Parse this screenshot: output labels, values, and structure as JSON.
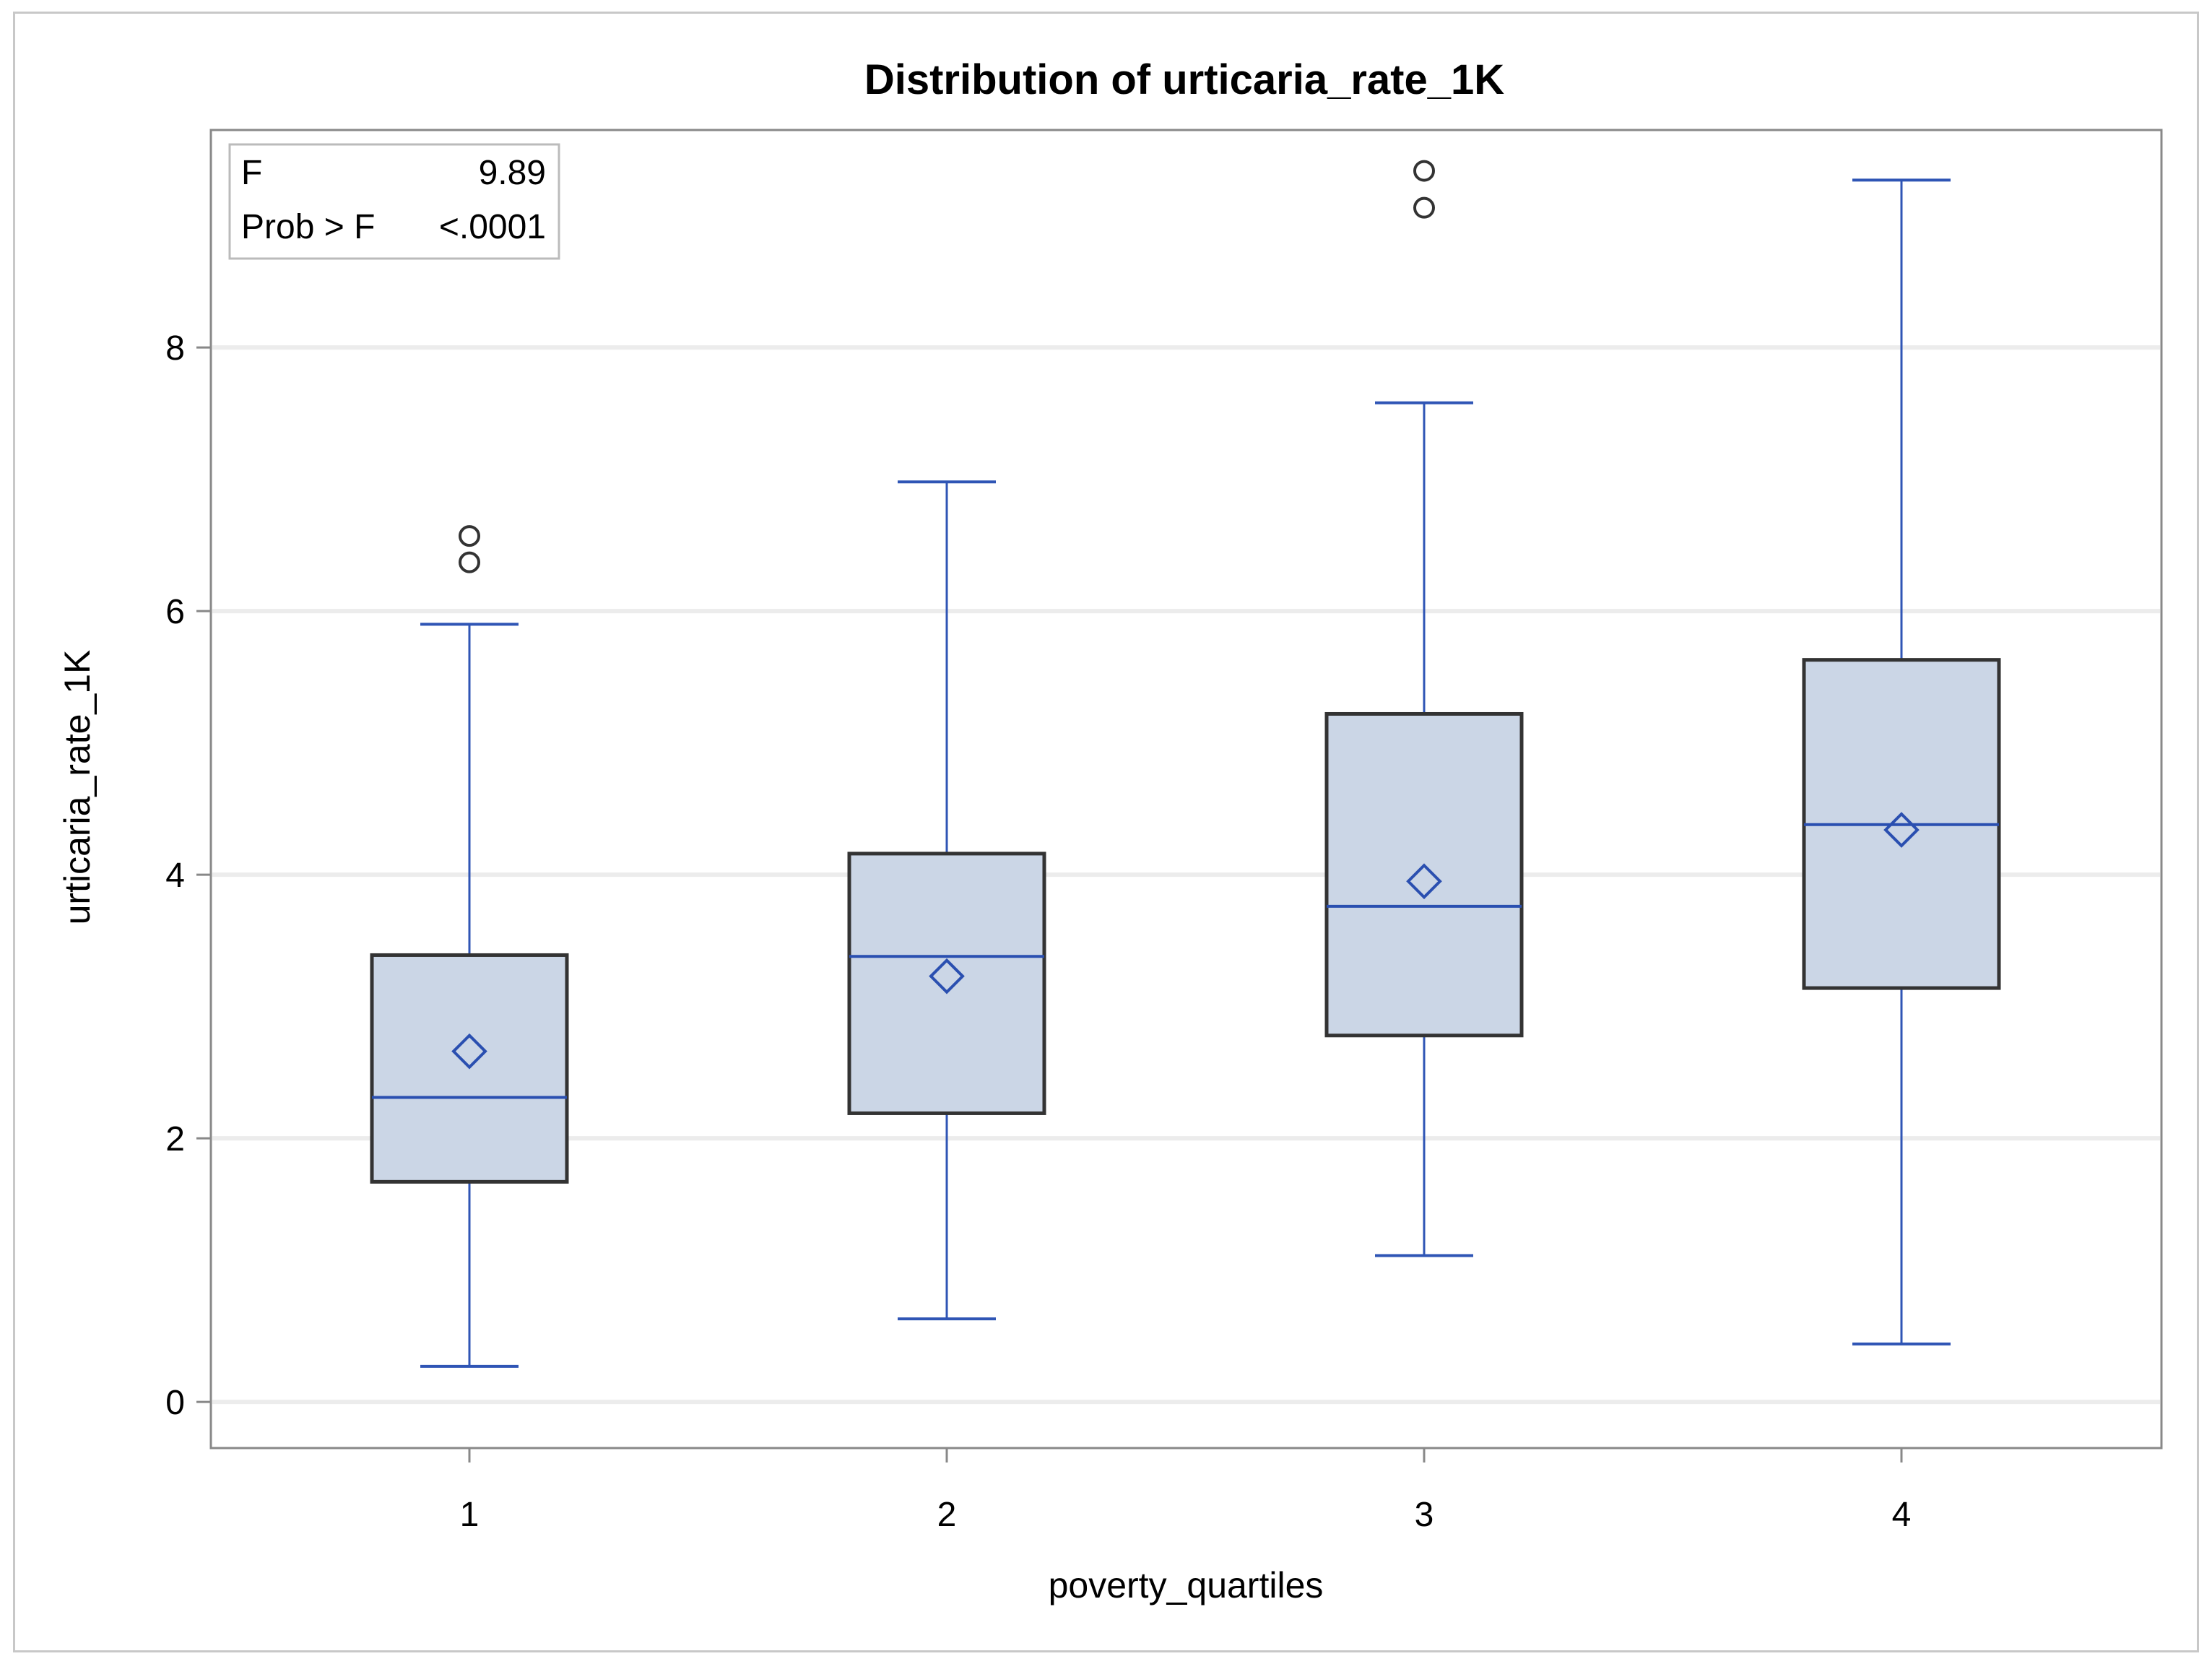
{
  "chart_data": {
    "type": "boxplot",
    "title": "Distribution of urticaria_rate_1K",
    "xlabel": "poverty_quartiles",
    "ylabel": "urticaria_rate_1K",
    "ylim": [
      -0.35,
      9.65
    ],
    "yticks": [
      0,
      2,
      4,
      6,
      8
    ],
    "grid": true,
    "categories": [
      "1",
      "2",
      "3",
      "4"
    ],
    "boxes": [
      {
        "category": "1",
        "min": 0.27,
        "q1": 1.67,
        "median": 2.31,
        "q3": 3.39,
        "max": 5.9,
        "mean": 2.66,
        "outliers": [
          6.37,
          6.57
        ]
      },
      {
        "category": "2",
        "min": 0.63,
        "q1": 2.19,
        "median": 3.38,
        "q3": 4.16,
        "max": 6.98,
        "mean": 3.23,
        "outliers": []
      },
      {
        "category": "3",
        "min": 1.11,
        "q1": 2.78,
        "median": 3.76,
        "q3": 5.22,
        "max": 7.58,
        "mean": 3.95,
        "outliers": [
          9.06,
          9.34
        ]
      },
      {
        "category": "4",
        "min": 0.44,
        "q1": 3.14,
        "median": 4.38,
        "q3": 5.63,
        "max": 9.27,
        "mean": 4.34,
        "outliers": []
      }
    ],
    "stats_box": {
      "rows": [
        {
          "label": "F",
          "value": "9.89"
        },
        {
          "label": "Prob > F",
          "value": "<.0001"
        }
      ]
    },
    "colors": {
      "box_fill": "#cbd6e6",
      "box_edge": "#333333",
      "whisker": "#2f55b5",
      "median": "#2a4fb0",
      "mean_marker": "#2a4fb0",
      "outlier": "#333333",
      "grid": "#ececec",
      "axis": "#888888"
    }
  }
}
